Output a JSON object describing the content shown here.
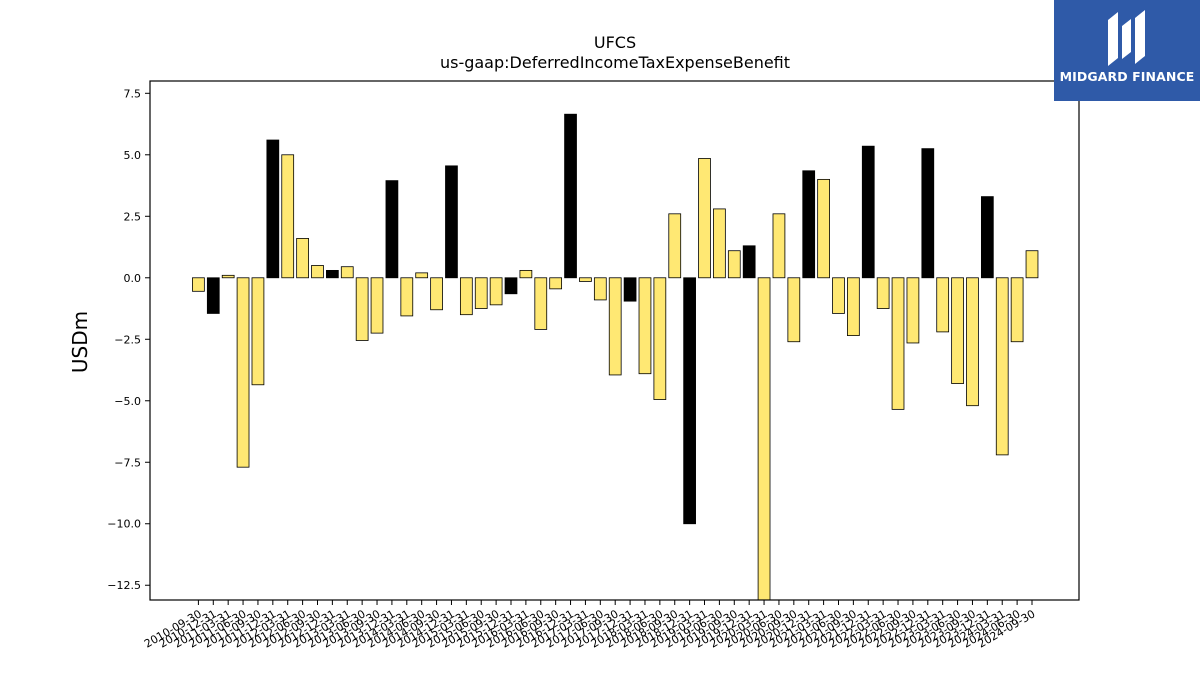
{
  "chart_data": {
    "type": "bar",
    "title": "UFCS",
    "subtitle": "us-gaap:DeferredIncomeTaxExpenseBenefit",
    "ylabel": "USDm",
    "xlabel": "",
    "ylim": [
      -13.1,
      8.0
    ],
    "yticks": [
      7.5,
      5.0,
      2.5,
      0.0,
      -2.5,
      -5.0,
      -7.5,
      -10.0,
      -12.5
    ],
    "ytick_labels": [
      "7.5",
      "5.0",
      "2.5",
      "0.0",
      "−2.5",
      "−5.0",
      "−7.5",
      "−10.0",
      "−12.5"
    ],
    "grid": false,
    "legend": "none",
    "colors": {
      "quarter": "#ffe873",
      "fiscal_year": "#000000",
      "edge": "#000000"
    },
    "categories": [
      "2010-09-30",
      "2010-12-31",
      "2011-03-31",
      "2011-06-30",
      "2011-09-30",
      "2011-12-31",
      "2012-03-31",
      "2012-06-30",
      "2012-09-30",
      "2012-12-31",
      "2013-03-31",
      "2013-06-30",
      "2013-09-30",
      "2013-12-31",
      "2014-03-31",
      "2014-06-30",
      "2014-09-30",
      "2014-12-31",
      "2015-03-31",
      "2015-06-30",
      "2015-09-30",
      "2015-12-31",
      "2016-03-31",
      "2016-06-30",
      "2016-09-30",
      "2016-12-31",
      "2017-03-31",
      "2017-06-30",
      "2017-09-30",
      "2017-12-31",
      "2018-03-31",
      "2018-06-30",
      "2018-09-30",
      "2018-12-31",
      "2019-03-31",
      "2019-06-30",
      "2019-09-30",
      "2019-12-31",
      "2020-03-31",
      "2020-06-30",
      "2020-09-30",
      "2020-12-31",
      "2021-03-31",
      "2021-06-30",
      "2021-09-30",
      "2021-12-31",
      "2022-03-31",
      "2022-06-30",
      "2022-09-30",
      "2022-12-31",
      "2023-03-31",
      "2023-06-30",
      "2023-09-30",
      "2023-12-31",
      "2024-03-31",
      "2024-06-30",
      "2024-09-30"
    ],
    "values": [
      -0.55,
      -1.45,
      0.1,
      -7.7,
      -4.35,
      5.6,
      5.0,
      1.6,
      0.5,
      0.3,
      0.45,
      -2.55,
      -2.25,
      3.95,
      -1.55,
      0.2,
      -1.3,
      4.55,
      -1.5,
      -1.25,
      -1.1,
      -0.65,
      0.3,
      -2.1,
      -0.45,
      6.65,
      -0.15,
      -0.9,
      -3.95,
      -0.95,
      -3.9,
      -4.95,
      2.6,
      -10.0,
      4.85,
      2.8,
      1.1,
      1.3,
      -13.1,
      2.6,
      -2.6,
      4.35,
      4.0,
      -1.45,
      -2.35,
      5.35,
      -1.25,
      -5.35,
      -2.65,
      5.25,
      -2.2,
      -4.3,
      -5.2,
      3.3,
      -7.2,
      -2.6,
      1.1
    ],
    "fiscal_year_end": [
      false,
      true,
      false,
      false,
      false,
      true,
      false,
      false,
      false,
      true,
      false,
      false,
      false,
      true,
      false,
      false,
      false,
      true,
      false,
      false,
      false,
      true,
      false,
      false,
      false,
      true,
      false,
      false,
      false,
      true,
      false,
      false,
      false,
      true,
      false,
      false,
      false,
      true,
      false,
      false,
      false,
      true,
      false,
      false,
      false,
      true,
      false,
      false,
      false,
      true,
      false,
      false,
      false,
      true,
      false,
      false,
      false
    ]
  },
  "logo": {
    "text": "MIDGARD FINANCE"
  }
}
